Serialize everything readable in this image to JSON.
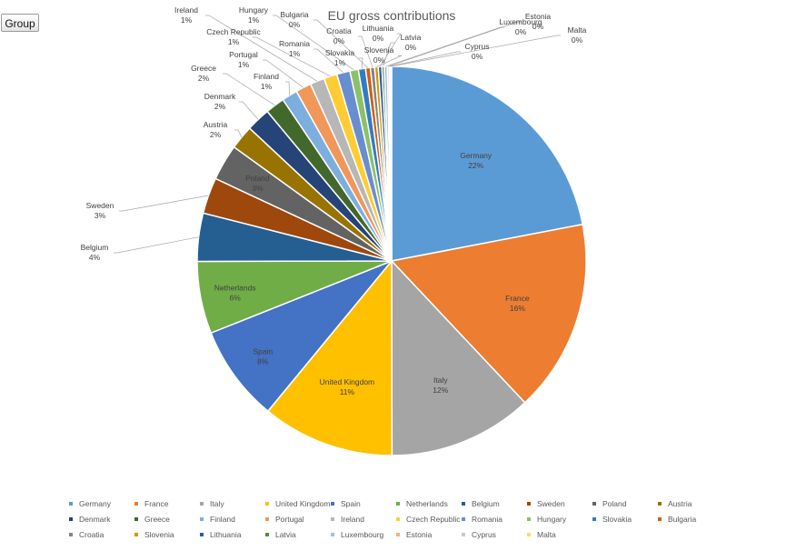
{
  "toolbar": {
    "group_label": "Group"
  },
  "chart_data": {
    "type": "pie",
    "title": "EU gross contributions",
    "slices": [
      {
        "name": "Germany",
        "value": 22,
        "label": "22%",
        "color": "#5b9bd5"
      },
      {
        "name": "France",
        "value": 16,
        "label": "16%",
        "color": "#ed7d31"
      },
      {
        "name": "Italy",
        "value": 12,
        "label": "12%",
        "color": "#a5a5a5"
      },
      {
        "name": "United Kingdom",
        "value": 11,
        "label": "11%",
        "color": "#ffc000"
      },
      {
        "name": "Spain",
        "value": 8,
        "label": "8%",
        "color": "#4472c4"
      },
      {
        "name": "Netherlands",
        "value": 6,
        "label": "6%",
        "color": "#70ad47"
      },
      {
        "name": "Belgium",
        "value": 4,
        "label": "4%",
        "color": "#255e91"
      },
      {
        "name": "Sweden",
        "value": 3,
        "label": "3%",
        "color": "#9e480e"
      },
      {
        "name": "Poland",
        "value": 3,
        "label": "3%",
        "color": "#636363"
      },
      {
        "name": "Austria",
        "value": 2,
        "label": "2%",
        "color": "#997300"
      },
      {
        "name": "Denmark",
        "value": 2,
        "label": "2%",
        "color": "#264478"
      },
      {
        "name": "Greece",
        "value": 1.6,
        "label": "2%",
        "color": "#43682b"
      },
      {
        "name": "Finland",
        "value": 1.3,
        "label": "1%",
        "color": "#7cafdd"
      },
      {
        "name": "Portugal",
        "value": 1.3,
        "label": "1%",
        "color": "#f1975a"
      },
      {
        "name": "Ireland",
        "value": 1.2,
        "label": "1%",
        "color": "#b7b7b7"
      },
      {
        "name": "Czech Republic",
        "value": 1.1,
        "label": "1%",
        "color": "#ffcd33"
      },
      {
        "name": "Romania",
        "value": 1.1,
        "label": "1%",
        "color": "#698ed0"
      },
      {
        "name": "Hungary",
        "value": 0.7,
        "label": "1%",
        "color": "#8cc168"
      },
      {
        "name": "Slovakia",
        "value": 0.6,
        "label": "1%",
        "color": "#327dc2"
      },
      {
        "name": "Bulgaria",
        "value": 0.4,
        "label": "0%",
        "color": "#d26012"
      },
      {
        "name": "Croatia",
        "value": 0.35,
        "label": "0%",
        "color": "#848484"
      },
      {
        "name": "Slovenia",
        "value": 0.3,
        "label": "0%",
        "color": "#cc9a00"
      },
      {
        "name": "Lithuania",
        "value": 0.3,
        "label": "0%",
        "color": "#335aa1"
      },
      {
        "name": "Latvia",
        "value": 0.2,
        "label": "0%",
        "color": "#5a8a39"
      },
      {
        "name": "Luxembourg",
        "value": 0.25,
        "label": "0%",
        "color": "#9dc3e6"
      },
      {
        "name": "Estonia",
        "value": 0.15,
        "label": "0%",
        "color": "#f4b183"
      },
      {
        "name": "Cyprus",
        "value": 0.12,
        "label": "0%",
        "color": "#c9c9c9"
      },
      {
        "name": "Malta",
        "value": 0.08,
        "label": "0%",
        "color": "#ffd966"
      }
    ],
    "legend_position": "bottom"
  }
}
